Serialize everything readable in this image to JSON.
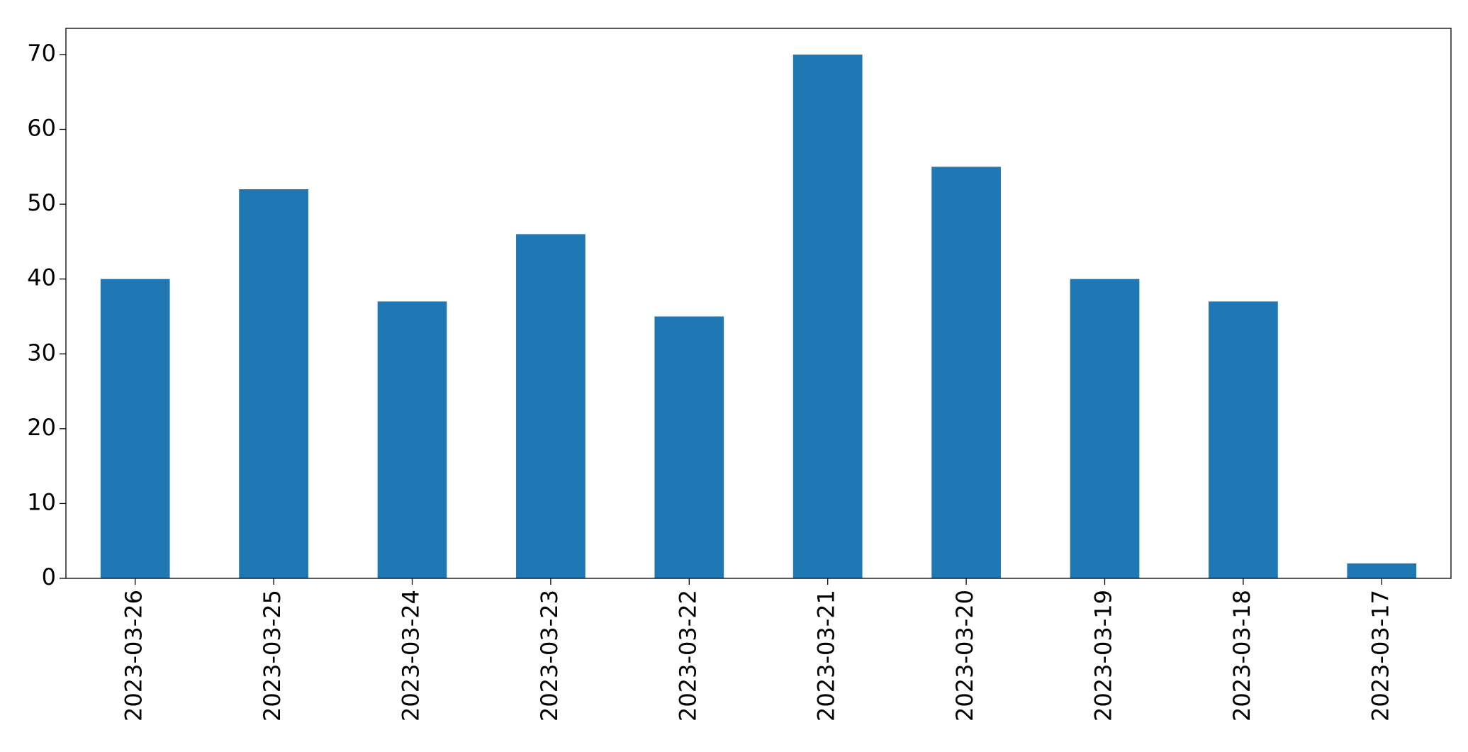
{
  "chart_data": {
    "type": "bar",
    "categories": [
      "2023-03-26",
      "2023-03-25",
      "2023-03-24",
      "2023-03-23",
      "2023-03-22",
      "2023-03-21",
      "2023-03-20",
      "2023-03-19",
      "2023-03-18",
      "2023-03-17"
    ],
    "values": [
      40,
      52,
      37,
      46,
      35,
      70,
      55,
      40,
      37,
      2
    ],
    "color": "#1f77b4",
    "ylim": [
      0,
      73.5
    ],
    "yticks": [
      0,
      10,
      20,
      30,
      40,
      50,
      60,
      70
    ],
    "grid": false
  }
}
